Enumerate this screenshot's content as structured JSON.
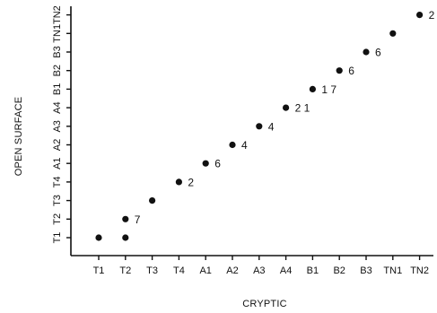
{
  "chart_data": {
    "type": "scatter",
    "xlabel": "CRYPTIC",
    "ylabel": "OPEN SURFACE",
    "categories": [
      "T1",
      "T2",
      "T3",
      "T4",
      "A1",
      "A2",
      "A3",
      "A4",
      "B1",
      "B2",
      "B3",
      "TN1",
      "TN2"
    ],
    "grid": false,
    "points": [
      {
        "x": "T1",
        "y": "T1",
        "label": ""
      },
      {
        "x": "T2",
        "y": "T1",
        "label": ""
      },
      {
        "x": "T2",
        "y": "T2",
        "label": "7"
      },
      {
        "x": "T3",
        "y": "T3",
        "label": ""
      },
      {
        "x": "T4",
        "y": "T4",
        "label": "2"
      },
      {
        "x": "A1",
        "y": "A1",
        "label": "6"
      },
      {
        "x": "A2",
        "y": "A2",
        "label": "4"
      },
      {
        "x": "A3",
        "y": "A3",
        "label": "4"
      },
      {
        "x": "A4",
        "y": "A4",
        "label": "2 1"
      },
      {
        "x": "B1",
        "y": "B1",
        "label": "1 7"
      },
      {
        "x": "B2",
        "y": "B2",
        "label": "6"
      },
      {
        "x": "B3",
        "y": "B3",
        "label": "6"
      },
      {
        "x": "TN1",
        "y": "TN1",
        "label": ""
      },
      {
        "x": "TN2",
        "y": "TN2",
        "label": "2"
      }
    ]
  }
}
